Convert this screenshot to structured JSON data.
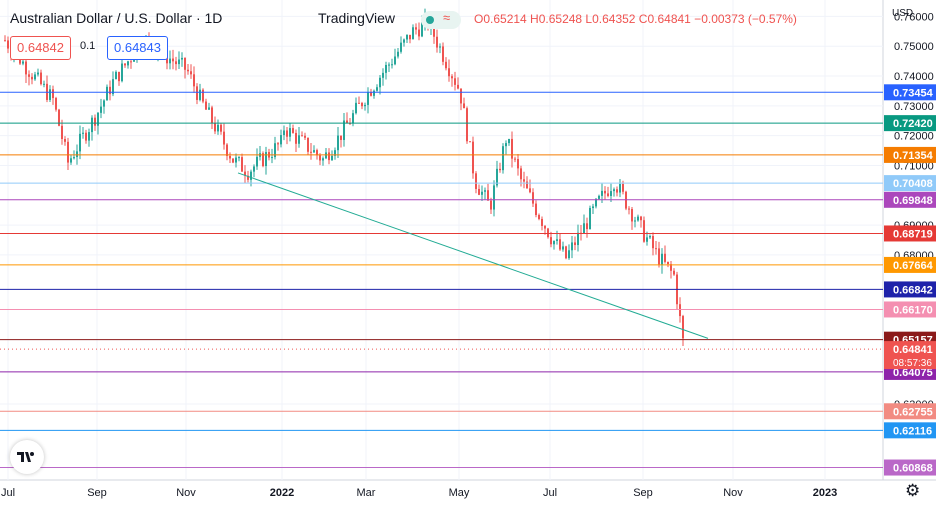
{
  "header": {
    "title": "Australian Dollar / U.S. Dollar · 1D",
    "brand": "TradingView",
    "ohlc": "O0.65214 H0.65248 L0.64352 C0.64841 −0.00373 (−0.57%)",
    "sell_price": "0.64842",
    "spread": "0.1",
    "buy_price": "0.64843",
    "currency": "USD"
  },
  "colors": {
    "up": "#26a69a",
    "down": "#ef5350",
    "trendline": "#22ab94"
  },
  "chart_data": {
    "type": "candlestick",
    "title": "Australian Dollar / U.S. Dollar · 1D",
    "x_ticks": [
      "Jul",
      "Sep",
      "Nov",
      "2022",
      "Mar",
      "May",
      "Jul",
      "Sep",
      "Nov",
      "2023"
    ],
    "y_ticks": [
      0.76,
      0.75,
      0.74,
      0.73,
      0.72,
      0.71,
      0.69,
      0.68,
      0.63
    ],
    "ylim": [
      0.6045,
      0.7655
    ],
    "grid": true,
    "current_price": "0.64841",
    "countdown": "08:57:36",
    "price_path": [
      [
        "Jul",
        0.752
      ],
      [
        "Aug",
        0.732
      ],
      [
        "Aug",
        0.711
      ],
      [
        "Sep",
        0.728
      ],
      [
        "Sep",
        0.738
      ],
      [
        "Oct",
        0.752
      ],
      [
        "Nov",
        0.742
      ],
      [
        "Nov",
        0.731
      ],
      [
        "Dec",
        0.712
      ],
      [
        "Dec",
        0.708
      ],
      [
        "2022",
        0.718
      ],
      [
        "Jan",
        0.723
      ],
      [
        "Feb",
        0.712
      ],
      [
        "Feb",
        0.719
      ],
      [
        "Mar",
        0.734
      ],
      [
        "Apr",
        0.755
      ],
      [
        "Apr",
        0.758
      ],
      [
        "May",
        0.735
      ],
      [
        "May",
        0.705
      ],
      [
        "May",
        0.696
      ],
      [
        "Jun",
        0.719
      ],
      [
        "Jun",
        0.705
      ],
      [
        "Jul",
        0.686
      ],
      [
        "Jul",
        0.679
      ],
      [
        "Aug",
        0.698
      ],
      [
        "Aug",
        0.705
      ],
      [
        "Sep",
        0.687
      ],
      [
        "Sep",
        0.679
      ],
      [
        "Sep",
        0.673
      ],
      [
        "Oct",
        0.6484
      ]
    ],
    "horizontal_levels": [
      {
        "value": 0.73454,
        "color": "#2962ff"
      },
      {
        "value": 0.7242,
        "color": "#089981"
      },
      {
        "value": 0.71354,
        "color": "#f57c00"
      },
      {
        "value": 0.70408,
        "color": "#90caf9"
      },
      {
        "value": 0.69848,
        "color": "#ab47bc"
      },
      {
        "value": 0.68719,
        "color": "#e53935"
      },
      {
        "value": 0.67664,
        "color": "#ff9800"
      },
      {
        "value": 0.66842,
        "color": "#1e22aa"
      },
      {
        "value": 0.6617,
        "color": "#f48fb1"
      },
      {
        "value": 0.65157,
        "color": "#8b1a1a"
      },
      {
        "value": 0.64075,
        "color": "#8e24aa"
      },
      {
        "value": 0.62755,
        "color": "#f28b82"
      },
      {
        "value": 0.62116,
        "color": "#2196f3"
      },
      {
        "value": 0.60868,
        "color": "#ba68c8"
      }
    ],
    "trendline": {
      "start": [
        "Nov",
        0.7075
      ],
      "end": [
        "Oct",
        0.652
      ]
    }
  }
}
